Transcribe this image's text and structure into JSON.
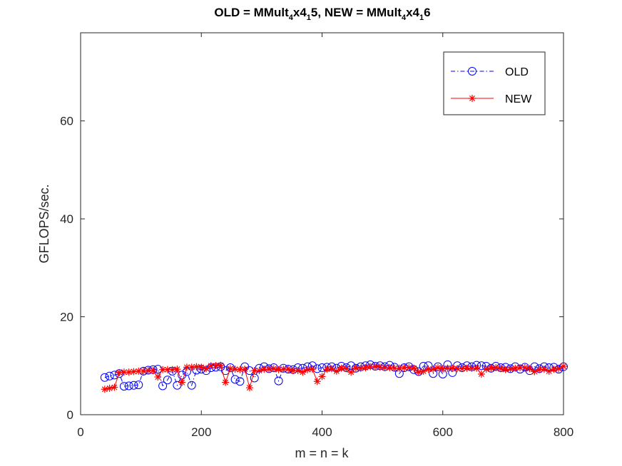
{
  "chart_data": {
    "type": "line",
    "title": {
      "parts": [
        "OLD = MMult",
        "4",
        "x4",
        "1",
        "5, NEW = MMult",
        "4",
        "x4",
        "1",
        "6"
      ]
    },
    "xlabel": "m = n = k",
    "ylabel": "GFLOPS/sec.",
    "xlim": [
      0,
      800
    ],
    "ylim": [
      0,
      78
    ],
    "xticks": [
      0,
      200,
      400,
      600,
      800
    ],
    "xtick_labels": [
      "0",
      "200",
      "400",
      "600",
      "800"
    ],
    "yticks": [
      0,
      20,
      40,
      60
    ],
    "ytick_labels": [
      "0",
      "20",
      "40",
      "60"
    ],
    "grid": false,
    "legend_position": "top-right",
    "x": [
      40,
      48,
      56,
      64,
      72,
      80,
      88,
      96,
      104,
      112,
      120,
      128,
      136,
      144,
      152,
      160,
      168,
      176,
      184,
      192,
      200,
      208,
      216,
      224,
      232,
      240,
      248,
      256,
      264,
      272,
      280,
      288,
      296,
      304,
      312,
      320,
      328,
      336,
      344,
      352,
      360,
      368,
      376,
      384,
      392,
      400,
      408,
      416,
      424,
      432,
      440,
      448,
      456,
      464,
      472,
      480,
      488,
      496,
      504,
      512,
      520,
      528,
      536,
      544,
      552,
      560,
      568,
      576,
      584,
      592,
      600,
      608,
      616,
      624,
      632,
      640,
      648,
      656,
      664,
      672,
      680,
      688,
      696,
      704,
      712,
      720,
      728,
      736,
      744,
      752,
      760,
      768,
      776,
      784,
      792,
      800
    ],
    "series": [
      {
        "name": "OLD",
        "color": "#0000ff",
        "marker": "circle",
        "line": "dash-dot",
        "values": [
          7.6,
          7.9,
          8.1,
          8.4,
          5.8,
          5.9,
          6.0,
          6.1,
          8.9,
          9.1,
          9.2,
          9.3,
          5.9,
          7.1,
          8.9,
          6.0,
          8.1,
          8.8,
          6.0,
          9.1,
          9.3,
          9.0,
          9.6,
          9.7,
          9.8,
          9.0,
          9.6,
          7.2,
          6.8,
          9.8,
          9.0,
          7.5,
          9.5,
          9.8,
          9.4,
          9.6,
          6.9,
          9.5,
          9.3,
          9.2,
          9.6,
          9.5,
          9.8,
          10.0,
          9.4,
          9.6,
          9.7,
          9.8,
          9.5,
          9.9,
          9.6,
          10.0,
          9.5,
          9.8,
          10.0,
          10.2,
          9.9,
          10.0,
          9.8,
          10.1,
          9.7,
          8.4,
          9.6,
          9.8,
          9.2,
          8.8,
          9.9,
          10.0,
          8.4,
          9.8,
          8.3,
          10.2,
          8.6,
          10.0,
          9.6,
          10.0,
          9.8,
          10.1,
          10.0,
          9.9,
          9.5,
          9.9,
          9.6,
          9.7,
          9.4,
          9.8,
          9.3,
          9.7,
          9.0,
          9.8,
          9.4,
          9.8,
          9.6,
          9.7,
          9.3,
          9.8
        ]
      },
      {
        "name": "NEW",
        "color": "#ff0000",
        "marker": "asterisk",
        "line": "solid",
        "values": [
          5.2,
          5.4,
          5.6,
          8.6,
          8.7,
          8.7,
          8.8,
          8.9,
          8.9,
          9.0,
          9.0,
          7.7,
          9.2,
          9.2,
          9.2,
          9.3,
          6.6,
          9.7,
          9.7,
          9.8,
          9.7,
          9.4,
          10.0,
          10.0,
          10.1,
          6.6,
          9.4,
          9.3,
          9.2,
          9.3,
          5.5,
          9.0,
          9.0,
          9.3,
          9.3,
          9.4,
          9.2,
          9.3,
          9.3,
          9.0,
          9.0,
          8.7,
          9.2,
          9.3,
          6.8,
          7.8,
          9.3,
          9.4,
          8.9,
          9.5,
          9.4,
          8.7,
          9.5,
          9.5,
          9.6,
          9.8,
          9.8,
          9.7,
          9.6,
          9.6,
          9.5,
          9.5,
          9.6,
          9.6,
          9.5,
          8.7,
          8.9,
          9.3,
          9.3,
          9.6,
          9.4,
          9.5,
          9.5,
          9.4,
          9.4,
          9.5,
          9.5,
          9.5,
          8.3,
          9.3,
          9.5,
          9.6,
          9.4,
          9.2,
          9.3,
          9.5,
          9.6,
          9.6,
          9.4,
          8.8,
          9.2,
          9.3,
          8.9,
          9.3,
          9.4,
          9.9
        ]
      }
    ]
  }
}
